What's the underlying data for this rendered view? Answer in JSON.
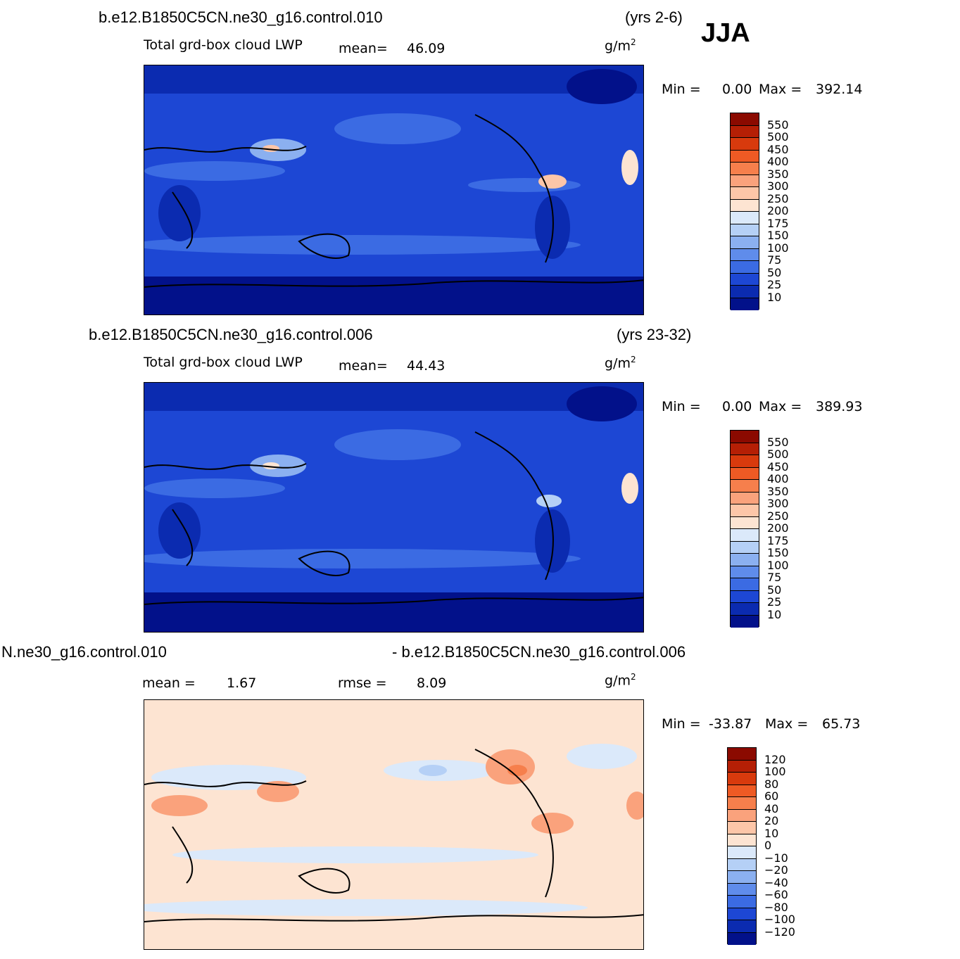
{
  "season": "JJA",
  "units": "g/m",
  "units_exp": "2",
  "panels": [
    {
      "case": "b.e12.B1850C5CN.ne30_g16.control.010",
      "years": "(yrs 2-6)",
      "variable": "Total grd-box cloud LWP",
      "mean_label": "mean=",
      "mean_value": "46.09",
      "min_label": "Min =",
      "min_value": "0.00",
      "max_label": "Max =",
      "max_value": "392.14"
    },
    {
      "case": "b.e12.B1850C5CN.ne30_g16.control.006",
      "years": "(yrs 23-32)",
      "variable": "Total grd-box cloud LWP",
      "mean_label": "mean=",
      "mean_value": "44.43",
      "min_label": "Min =",
      "min_value": "0.00",
      "max_label": "Max =",
      "max_value": "389.93"
    },
    {
      "case_left": "N.ne30_g16.control.010",
      "case_right": "- b.e12.B1850C5CN.ne30_g16.control.006",
      "mean_label": "mean =",
      "mean_value": "1.67",
      "rmse_label": "rmse =",
      "rmse_value": "8.09",
      "min_label": "Min =",
      "min_value": "-33.87",
      "max_label": "Max =",
      "max_value": "65.73"
    }
  ],
  "field_colorbar": {
    "labels": [
      "550",
      "500",
      "450",
      "400",
      "350",
      "300",
      "250",
      "200",
      "175",
      "150",
      "100",
      "75",
      "50",
      "25",
      "10"
    ],
    "colors": [
      "#8b0a00",
      "#b51f05",
      "#d83a0d",
      "#ee5a24",
      "#f67f4c",
      "#faa27c",
      "#fdc6a8",
      "#fde4d2",
      "#dbe9fa",
      "#b5d0f6",
      "#8bb0f0",
      "#5f8ceb",
      "#3b6be3",
      "#1d47d4",
      "#0b2bb0",
      "#02118a"
    ]
  },
  "diff_colorbar": {
    "labels": [
      "120",
      "100",
      "80",
      "60",
      "40",
      "20",
      "10",
      "0",
      "−10",
      "−20",
      "−40",
      "−60",
      "−80",
      "−100",
      "−120"
    ],
    "colors": [
      "#8b0a00",
      "#b51f05",
      "#d83a0d",
      "#ee5a24",
      "#f67f4c",
      "#faa27c",
      "#fdc6a8",
      "#fde4d2",
      "#dbe9fa",
      "#b5d0f6",
      "#8bb0f0",
      "#5f8ceb",
      "#3b6be3",
      "#1d47d4",
      "#0b2bb0",
      "#02118a"
    ]
  }
}
